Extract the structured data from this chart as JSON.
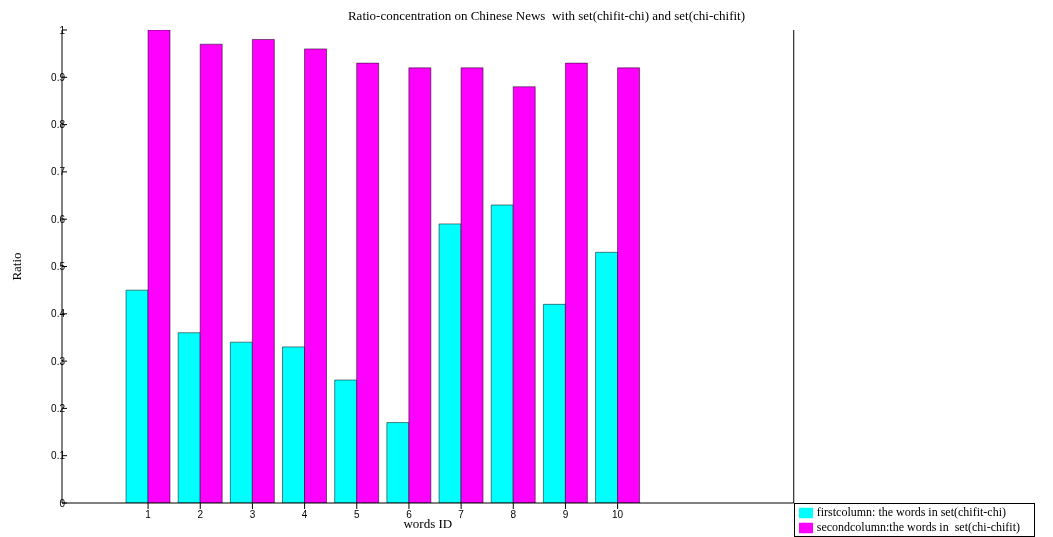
{
  "chart_data": {
    "type": "bar",
    "title": "Ratio-concentration on Chinese News  with set(chifit-chi) and set(chi-chifit)",
    "xlabel": "words ID",
    "ylabel": "Ratio",
    "categories": [
      "1",
      "2",
      "3",
      "4",
      "5",
      "6",
      "7",
      "8",
      "9",
      "10"
    ],
    "series": [
      {
        "name": "firstcolumn: the words in set(chifit-chi)",
        "color": "#00ffff",
        "values": [
          0.45,
          0.36,
          0.34,
          0.33,
          0.26,
          0.17,
          0.59,
          0.63,
          0.42,
          0.53
        ]
      },
      {
        "name": "secondcolumn:the words in  set(chi-chifit)",
        "color": "#ff00ff",
        "values": [
          1.0,
          0.97,
          0.98,
          0.96,
          0.93,
          0.92,
          0.92,
          0.88,
          0.93,
          0.92
        ]
      }
    ],
    "ylim": [
      0,
      1
    ],
    "yticks": [
      0,
      0.1,
      0.2,
      0.3,
      0.4,
      0.5,
      0.6,
      0.7,
      0.8,
      0.9,
      1
    ],
    "legend": "bottom right"
  }
}
